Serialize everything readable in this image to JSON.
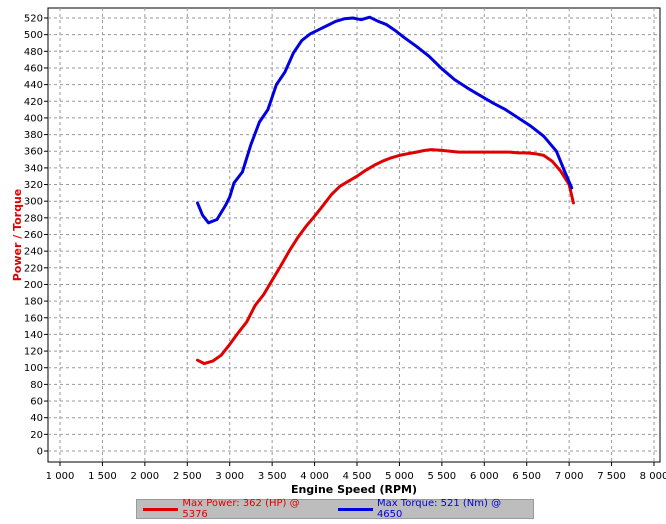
{
  "chart_data": {
    "type": "line",
    "xlabel": "Engine Speed (RPM)",
    "ylabel": "Power / Torque",
    "xlim": [
      1000,
      8000
    ],
    "ylim": [
      0,
      520
    ],
    "x_ticks": [
      "1 000",
      "1 500",
      "2 000",
      "2 500",
      "3 000",
      "3 500",
      "4 000",
      "4 500",
      "5 000",
      "5 500",
      "6 000",
      "6 500",
      "7 000",
      "7 500",
      "8 000"
    ],
    "y_ticks": [
      "0",
      "20",
      "40",
      "60",
      "80",
      "100",
      "120",
      "140",
      "160",
      "180",
      "200",
      "220",
      "240",
      "260",
      "280",
      "300",
      "320",
      "340",
      "360",
      "380",
      "400",
      "420",
      "440",
      "460",
      "480",
      "500",
      "520"
    ],
    "grid": true,
    "legend_position": "bottom",
    "series": [
      {
        "name": "Max Power: 362 (HP) @ 5376",
        "color": "#e00000",
        "points": [
          [
            2620,
            109
          ],
          [
            2700,
            105
          ],
          [
            2800,
            108
          ],
          [
            2900,
            115
          ],
          [
            3000,
            128
          ],
          [
            3100,
            142
          ],
          [
            3200,
            155
          ],
          [
            3300,
            175
          ],
          [
            3400,
            188
          ],
          [
            3500,
            205
          ],
          [
            3600,
            222
          ],
          [
            3700,
            240
          ],
          [
            3800,
            256
          ],
          [
            3900,
            270
          ],
          [
            4000,
            282
          ],
          [
            4100,
            295
          ],
          [
            4200,
            308
          ],
          [
            4300,
            318
          ],
          [
            4400,
            324
          ],
          [
            4500,
            330
          ],
          [
            4600,
            337
          ],
          [
            4700,
            343
          ],
          [
            4800,
            348
          ],
          [
            4900,
            352
          ],
          [
            5000,
            355
          ],
          [
            5100,
            357
          ],
          [
            5200,
            359
          ],
          [
            5300,
            361
          ],
          [
            5376,
            362
          ],
          [
            5500,
            361
          ],
          [
            5600,
            360
          ],
          [
            5700,
            359
          ],
          [
            5800,
            359
          ],
          [
            5900,
            359
          ],
          [
            6000,
            359
          ],
          [
            6100,
            359
          ],
          [
            6200,
            359
          ],
          [
            6300,
            359
          ],
          [
            6400,
            358
          ],
          [
            6500,
            358
          ],
          [
            6600,
            357
          ],
          [
            6700,
            355
          ],
          [
            6800,
            348
          ],
          [
            6900,
            336
          ],
          [
            7000,
            320
          ],
          [
            7050,
            298
          ]
        ]
      },
      {
        "name": "Max Torque: 521 (Nm) @ 4650",
        "color": "#0000e0",
        "points": [
          [
            2620,
            298
          ],
          [
            2680,
            283
          ],
          [
            2750,
            274
          ],
          [
            2850,
            278
          ],
          [
            2950,
            295
          ],
          [
            3000,
            305
          ],
          [
            3050,
            322
          ],
          [
            3150,
            335
          ],
          [
            3250,
            368
          ],
          [
            3350,
            395
          ],
          [
            3450,
            410
          ],
          [
            3550,
            440
          ],
          [
            3650,
            455
          ],
          [
            3750,
            478
          ],
          [
            3850,
            493
          ],
          [
            3950,
            501
          ],
          [
            4050,
            506
          ],
          [
            4150,
            511
          ],
          [
            4250,
            516
          ],
          [
            4350,
            519
          ],
          [
            4450,
            520
          ],
          [
            4550,
            518
          ],
          [
            4650,
            521
          ],
          [
            4750,
            516
          ],
          [
            4850,
            512
          ],
          [
            4950,
            505
          ],
          [
            5050,
            497
          ],
          [
            5200,
            486
          ],
          [
            5350,
            474
          ],
          [
            5500,
            459
          ],
          [
            5650,
            446
          ],
          [
            5800,
            436
          ],
          [
            5950,
            427
          ],
          [
            6100,
            418
          ],
          [
            6250,
            410
          ],
          [
            6400,
            400
          ],
          [
            6550,
            390
          ],
          [
            6700,
            378
          ],
          [
            6850,
            360
          ],
          [
            6950,
            335
          ],
          [
            7030,
            316
          ]
        ]
      }
    ]
  }
}
